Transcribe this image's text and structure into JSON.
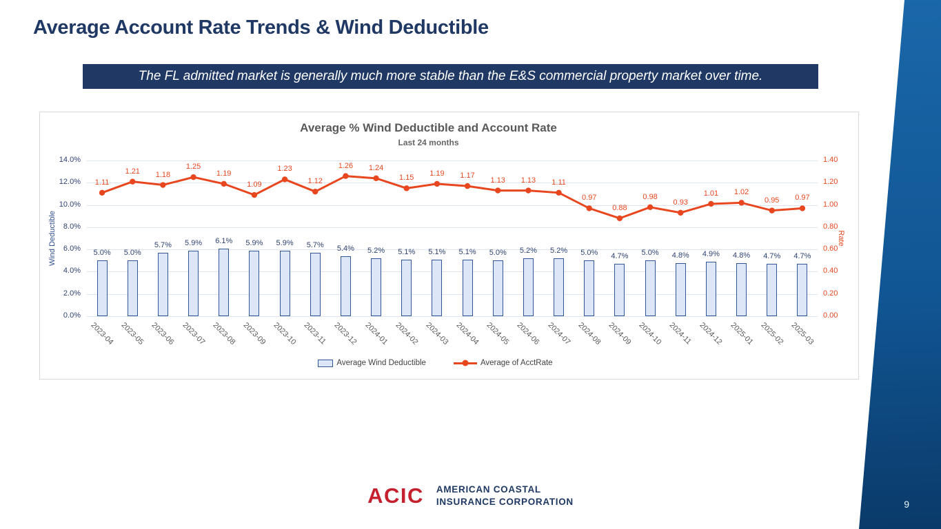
{
  "slide": {
    "page_number": "9"
  },
  "header": {
    "title": "Average Account Rate Trends & Wind Deductible"
  },
  "banner": {
    "text": "The FL admitted market is generally much more stable than the E&S commercial property market over time."
  },
  "chart_data": {
    "type": "combo",
    "title": "Average % Wind Deductible and Account Rate",
    "subtitle": "Last 24 months",
    "categories": [
      "2023-04",
      "2023-05",
      "2023-06",
      "2023-07",
      "2023-08",
      "2023-09",
      "2023-10",
      "2023-11",
      "2023-12",
      "2024-01",
      "2024-02",
      "2024-03",
      "2024-04",
      "2024-05",
      "2024-06",
      "2024-07",
      "2024-08",
      "2024-09",
      "2024-10",
      "2024-11",
      "2024-12",
      "2025-01",
      "2025-02",
      "2025-03"
    ],
    "series": [
      {
        "name": "Average Wind Deductible",
        "type": "bar",
        "axis": "left",
        "values": [
          5.0,
          5.0,
          5.7,
          5.9,
          6.1,
          5.9,
          5.9,
          5.7,
          5.4,
          5.2,
          5.1,
          5.1,
          5.1,
          5.0,
          5.2,
          5.2,
          5.0,
          4.7,
          5.0,
          4.8,
          4.9,
          4.8,
          4.7,
          4.7
        ],
        "labels": [
          "5.0%",
          "5.0%",
          "5.7%",
          "5.9%",
          "6.1%",
          "5.9%",
          "5.9%",
          "5.7%",
          "5.4%",
          "5.2%",
          "5.1%",
          "5.1%",
          "5.1%",
          "5.0%",
          "5.2%",
          "5.2%",
          "5.0%",
          "4.7%",
          "5.0%",
          "4.8%",
          "4.9%",
          "4.8%",
          "4.7%",
          "4.7%"
        ],
        "fill": "#dce6f6",
        "stroke": "#2f5597"
      },
      {
        "name": "Average of AcctRate",
        "type": "line",
        "axis": "right",
        "values": [
          1.11,
          1.21,
          1.18,
          1.25,
          1.19,
          1.09,
          1.23,
          1.12,
          1.26,
          1.24,
          1.15,
          1.19,
          1.17,
          1.13,
          1.13,
          1.11,
          0.97,
          0.88,
          0.98,
          0.93,
          1.01,
          1.02,
          0.95,
          0.97
        ],
        "labels": [
          "1.11",
          "1.21",
          "1.18",
          "1.25",
          "1.19",
          "1.09",
          "1.23",
          "1.12",
          "1.26",
          "1.24",
          "1.15",
          "1.19",
          "1.17",
          "1.13",
          "1.13",
          "1.11",
          "0.97",
          "0.88",
          "0.98",
          "0.93",
          "1.01",
          "1.02",
          "0.95",
          "0.97"
        ],
        "color": "#e8461f"
      }
    ],
    "left_axis": {
      "label": "Wind Deductible",
      "min": 0,
      "max": 14,
      "ticks": [
        "14.0%",
        "12.0%",
        "10.0%",
        "8.0%",
        "6.0%",
        "4.0%",
        "2.0%",
        "0.0%"
      ]
    },
    "right_axis": {
      "label": "Rate",
      "min": 0,
      "max": 1.4,
      "ticks": [
        "1.40",
        "1.20",
        "1.00",
        "0.80",
        "0.60",
        "0.40",
        "0.20",
        "0.00"
      ]
    },
    "grid": true,
    "legend_position": "bottom"
  },
  "footer": {
    "logo_text": "ACIC",
    "org_line1": "AMERICAN COASTAL",
    "org_line2": "INSURANCE CORPORATION"
  },
  "colors": {
    "navy": "#1f3864",
    "chart_red": "#e8461f",
    "bar_fill": "#dce6f6",
    "bar_border": "#2f5597",
    "logo_red": "#c4202e",
    "wedge_top": "#1a67a9",
    "wedge_bottom": "#0a3a69"
  }
}
